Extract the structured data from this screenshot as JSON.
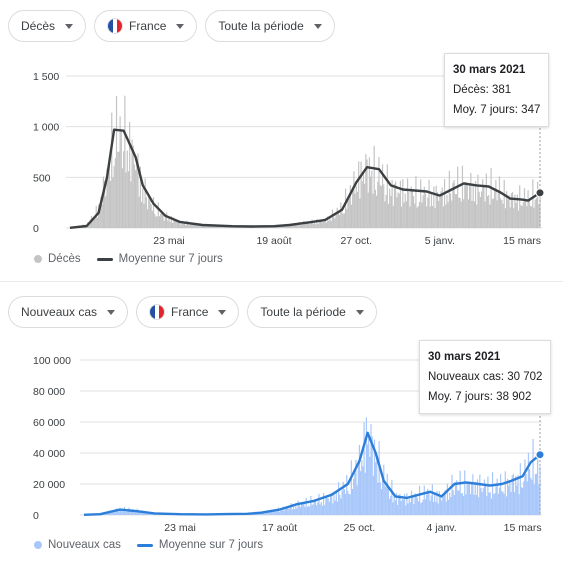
{
  "top": {
    "chips": [
      {
        "label": "Décès"
      },
      {
        "label": "France"
      },
      {
        "label": "Toute la période"
      }
    ],
    "tooltip": {
      "title": "30 mars 2021",
      "line1": "Décès: 381",
      "line2": "Moy. 7 jours: 347"
    },
    "legend": {
      "bars": "Décès",
      "line": "Moyenne sur 7 jours"
    }
  },
  "bottom": {
    "chips": [
      {
        "label": "Nouveaux cas"
      },
      {
        "label": "France"
      },
      {
        "label": "Toute la période"
      }
    ],
    "tooltip": {
      "title": "30 mars 2021",
      "line1": "Nouveaux cas: 30 702",
      "line2": "Moy. 7 jours: 38 902"
    },
    "legend": {
      "bars": "Nouveaux cas",
      "line": "Moyenne sur 7 jours"
    }
  },
  "colors": {
    "deaths_bar": "#c4c4c4",
    "deaths_line": "#3c4043",
    "cases_bar": "#a8c7fa",
    "cases_line": "#2d7ed8",
    "grid": "#e0e0e0"
  },
  "chart_data": [
    {
      "type": "bar",
      "series": [
        {
          "name": "Décès",
          "kind": "bar"
        },
        {
          "name": "Moyenne sur 7 jours",
          "kind": "line"
        }
      ],
      "x": [
        "03-01",
        "03-15",
        "03-25",
        "04-01",
        "04-07",
        "04-15",
        "04-25",
        "05-01",
        "05-10",
        "05-20",
        "06-01",
        "06-20",
        "07-15",
        "08-01",
        "08-19",
        "09-01",
        "09-20",
        "10-01",
        "10-15",
        "10-27",
        "11-05",
        "11-15",
        "11-25",
        "12-05",
        "12-15",
        "12-25",
        "01-05",
        "01-15",
        "01-25",
        "02-05",
        "02-15",
        "02-25",
        "03-05",
        "03-15",
        "03-20",
        "03-30"
      ],
      "values": [
        5,
        30,
        200,
        550,
        950,
        950,
        700,
        400,
        220,
        120,
        60,
        30,
        20,
        15,
        20,
        30,
        60,
        80,
        200,
        480,
        620,
        540,
        400,
        380,
        360,
        350,
        340,
        420,
        450,
        400,
        420,
        380,
        300,
        310,
        300,
        381
      ],
      "avg": [
        2,
        20,
        150,
        500,
        970,
        960,
        700,
        420,
        240,
        120,
        60,
        30,
        18,
        15,
        18,
        30,
        60,
        80,
        180,
        450,
        600,
        580,
        420,
        380,
        370,
        360,
        320,
        380,
        440,
        420,
        410,
        350,
        290,
        280,
        270,
        347
      ],
      "xticks": [
        "23 mai",
        "19 août",
        "27 oct.",
        "5 janv.",
        "15 mars"
      ],
      "yticks": [
        "0",
        "500",
        "1 000",
        "1 500"
      ],
      "ylim": [
        0,
        1500
      ]
    },
    {
      "type": "bar",
      "series": [
        {
          "name": "Nouveaux cas",
          "kind": "bar"
        },
        {
          "name": "Moyenne sur 7 jours",
          "kind": "line"
        }
      ],
      "x": [
        "03-01",
        "03-15",
        "04-01",
        "04-15",
        "05-01",
        "05-23",
        "06-15",
        "07-01",
        "07-20",
        "08-01",
        "08-17",
        "09-01",
        "09-15",
        "10-01",
        "10-15",
        "10-25",
        "11-01",
        "11-08",
        "11-15",
        "11-25",
        "12-05",
        "12-15",
        "12-25",
        "01-04",
        "01-15",
        "01-25",
        "02-05",
        "02-15",
        "02-25",
        "03-05",
        "03-15",
        "03-22",
        "03-30"
      ],
      "values": [
        100,
        500,
        4000,
        3000,
        1000,
        500,
        400,
        600,
        800,
        1500,
        3500,
        7000,
        9000,
        12000,
        20000,
        35000,
        55000,
        40000,
        25000,
        12000,
        11000,
        13000,
        15000,
        12000,
        20000,
        21000,
        20000,
        19000,
        20000,
        22000,
        25000,
        35000,
        30702
      ],
      "avg": [
        100,
        500,
        3500,
        2500,
        1000,
        500,
        400,
        600,
        800,
        1500,
        3500,
        7000,
        9000,
        13000,
        20000,
        35000,
        53000,
        40000,
        22000,
        12000,
        11000,
        13000,
        15000,
        12000,
        20000,
        21000,
        20000,
        19000,
        20000,
        22000,
        25000,
        34000,
        38902
      ],
      "xticks": [
        "23 mai",
        "17 août",
        "25 oct.",
        "4 janv.",
        "15 mars"
      ],
      "yticks": [
        "0",
        "20 000",
        "40 000",
        "60 000",
        "80 000",
        "100 000"
      ],
      "ylim": [
        0,
        100000
      ]
    }
  ]
}
